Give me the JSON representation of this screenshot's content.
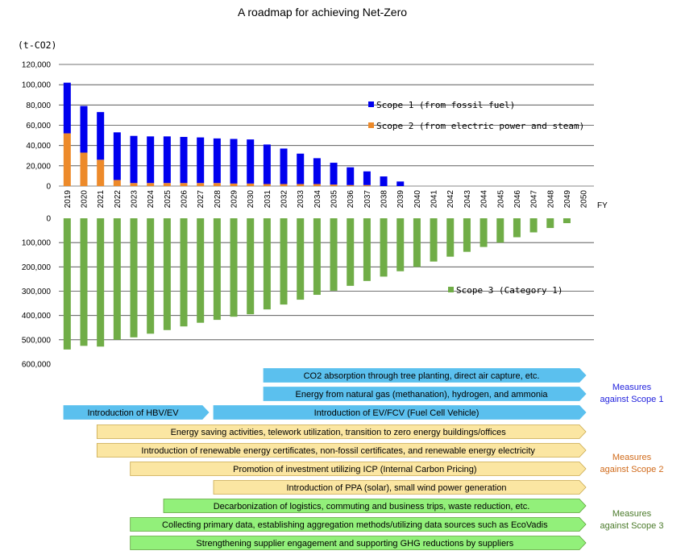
{
  "chart_data": [
    {
      "type": "bar",
      "stacked": true,
      "title": "A roadmap for achieving Net-Zero",
      "ylabel": "(t-CO2)",
      "xlabel": "FY",
      "ylim": [
        0,
        120000
      ],
      "yticks": [
        "0",
        "20,000",
        "40,000",
        "60,000",
        "80,000",
        "100,000",
        "120,000"
      ],
      "categories": [
        "2019",
        "2020",
        "2021",
        "2022",
        "2023",
        "2024",
        "2025",
        "2026",
        "2027",
        "2028",
        "2029",
        "2030",
        "2031",
        "2032",
        "2033",
        "2034",
        "2035",
        "2036",
        "2037",
        "2038",
        "2039",
        "2040",
        "2041",
        "2042",
        "2043",
        "2044",
        "2045",
        "2046",
        "2047",
        "2048",
        "2049",
        "2050"
      ],
      "series": [
        {
          "name": "Scope 2 (from electric power and steam)",
          "color": "#ed8a2a",
          "values": [
            52000,
            33000,
            26000,
            6000,
            3000,
            3000,
            3000,
            3000,
            3000,
            3000,
            2500,
            2500,
            2000,
            2000,
            2000,
            2000,
            1500,
            1000,
            1000,
            0,
            0,
            0,
            0,
            0,
            0,
            0,
            0,
            0,
            0,
            0,
            0,
            0
          ]
        },
        {
          "name": "Scope 1 (from fossil fuel)",
          "color": "#0000ee",
          "values": [
            50000,
            46000,
            47000,
            47000,
            46500,
            46000,
            46000,
            45500,
            45000,
            44000,
            44000,
            43500,
            39000,
            35000,
            30000,
            25500,
            21500,
            17500,
            13500,
            9500,
            4500,
            0,
            0,
            0,
            0,
            0,
            0,
            0,
            0,
            0,
            0,
            0
          ]
        }
      ],
      "legend_position": "top-right",
      "grid": true
    },
    {
      "type": "bar",
      "title": "",
      "ylim": [
        0,
        600000
      ],
      "yticks": [
        "0",
        "100,000",
        "200,000",
        "300,000",
        "400,000",
        "500,000",
        "600,000"
      ],
      "inverted": true,
      "series": [
        {
          "name": "Scope 3 (Category 1)",
          "color": "#70ad47",
          "values": [
            540000,
            525000,
            528000,
            500000,
            490000,
            475000,
            460000,
            445000,
            430000,
            418000,
            405000,
            395000,
            375000,
            355000,
            335000,
            315000,
            298000,
            278000,
            258000,
            240000,
            218000,
            200000,
            178000,
            158000,
            138000,
            118000,
            100000,
            78000,
            58000,
            40000,
            20000,
            0
          ]
        }
      ],
      "legend_position": "right",
      "grid": true
    }
  ],
  "roadmap": {
    "scope1": {
      "label": "Measures\nagainst Scope 1",
      "color": "#2222dd",
      "arrow_fill": "#5bc0ee",
      "rows": [
        {
          "text": "CO2 absorption through tree planting, direct air capture, etc.",
          "start": "2031",
          "end": "2050"
        },
        {
          "text": "Energy from natural gas (methanation), hydrogen, and ammonia",
          "start": "2031",
          "end": "2050"
        },
        {
          "text": "Introduction of HBV/EV",
          "start": "2019",
          "end": "2027",
          "text2": "Introduction of EV/FCV (Fuel Cell Vehicle)",
          "start2": "2028",
          "end2": "2050"
        }
      ]
    },
    "scope2": {
      "label": "Measures\nagainst Scope 2",
      "color": "#d06a1a",
      "arrow_fill": "#fbe6a2",
      "rows": [
        {
          "text": "Energy saving activities, telework utilization, transition to zero energy buildings/offices",
          "start": "2021",
          "end": "2050"
        },
        {
          "text": "Introduction of renewable energy certificates, non-fossil certificates, and renewable energy electricity",
          "start": "2021",
          "end": "2050"
        },
        {
          "text": "Promotion of investment utilizing ICP (Internal Carbon Pricing)",
          "start": "2023",
          "end": "2050"
        },
        {
          "text": "Introduction of PPA (solar), small wind power generation",
          "start": "2028",
          "end": "2050"
        }
      ]
    },
    "scope3": {
      "label": "Measures\nagainst Scope 3",
      "color": "#4a7a2a",
      "arrow_fill": "#92f07a",
      "rows": [
        {
          "text": "Decarbonization of logistics, commuting and business trips, waste reduction, etc.",
          "start": "2025",
          "end": "2050"
        },
        {
          "text": "Collecting primary data, establishing aggregation methods/utilizing data sources such as EcoVadis",
          "start": "2023",
          "end": "2050"
        },
        {
          "text": "Strengthening supplier engagement and supporting GHG reductions by suppliers",
          "start": "2023",
          "end": "2050"
        }
      ]
    }
  }
}
